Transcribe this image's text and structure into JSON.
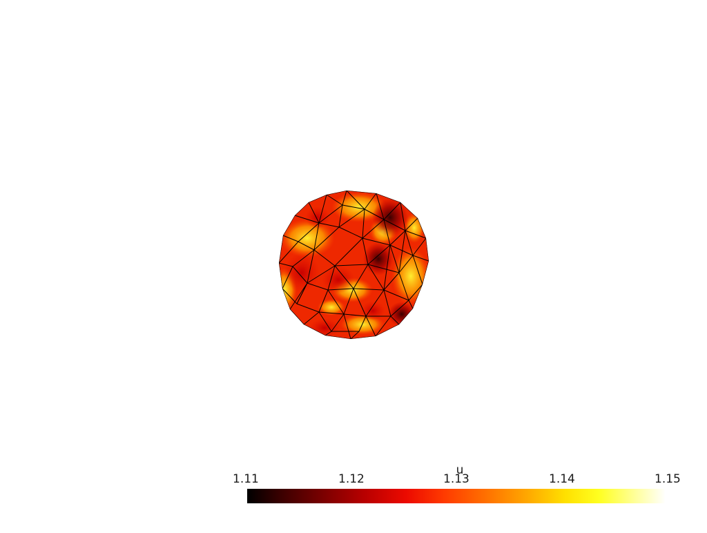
{
  "scene": {
    "background": "#ffffff",
    "mesh_object": "triangulated-sphere",
    "edge_color": "#000000"
  },
  "scalar_bar": {
    "title": "u",
    "ticks": [
      "1.11",
      "1.12",
      "1.13",
      "1.14",
      "1.15"
    ],
    "range": [
      1.11,
      1.15
    ],
    "colormap": "hot",
    "colors": [
      "#000000",
      "#ff0000",
      "#ffff00",
      "#ffffff"
    ]
  }
}
